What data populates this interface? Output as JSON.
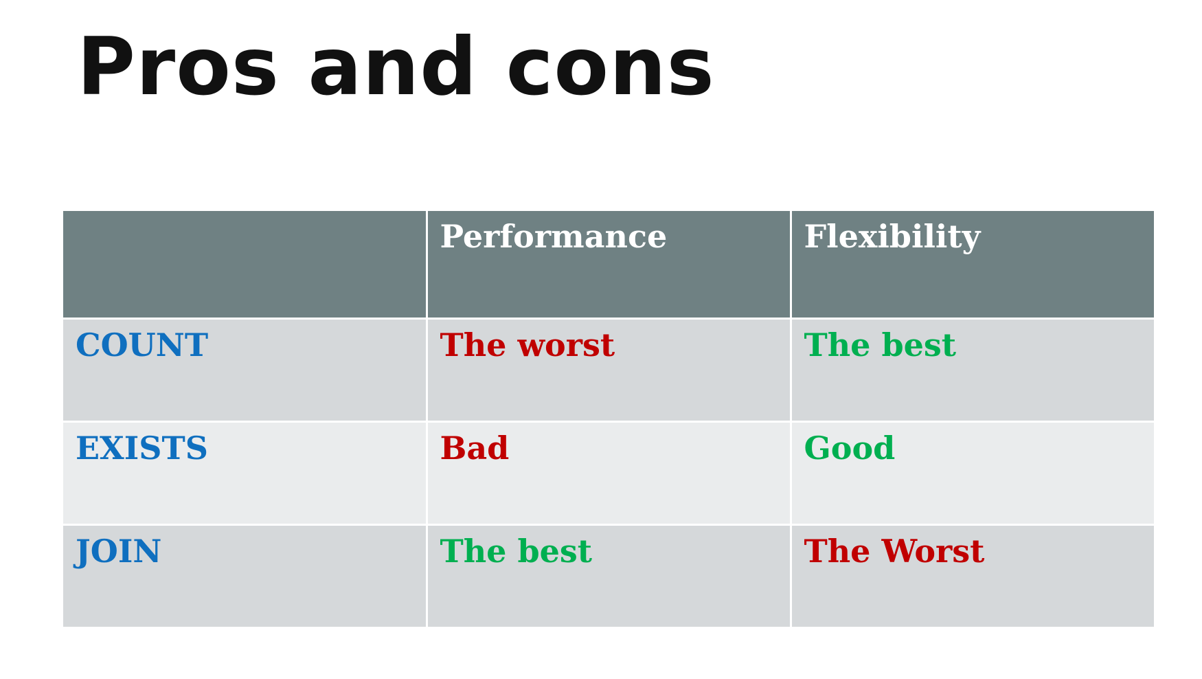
{
  "slide": {
    "title": "Pros and cons"
  },
  "table": {
    "columns": [
      "",
      "Performance",
      "Flexibility"
    ],
    "rows": [
      {
        "label": "COUNT",
        "performance": {
          "text": "The worst",
          "tone": "bad"
        },
        "flexibility": {
          "text": "The best",
          "tone": "good"
        }
      },
      {
        "label": "EXISTS",
        "performance": {
          "text": "Bad",
          "tone": "bad"
        },
        "flexibility": {
          "text": "Good",
          "tone": "good"
        }
      },
      {
        "label": "JOIN",
        "performance": {
          "text": "The best",
          "tone": "good"
        },
        "flexibility": {
          "text": "The Worst",
          "tone": "bad"
        }
      }
    ]
  },
  "colors": {
    "header_bg": "#6f8183",
    "row_odd_bg": "#d5d8da",
    "row_even_bg": "#eaeced",
    "label": "#0f6fbf",
    "bad": "#c00000",
    "good": "#00af50"
  }
}
